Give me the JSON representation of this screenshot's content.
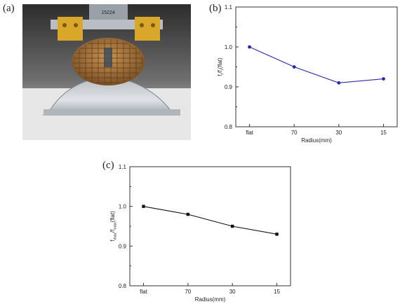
{
  "panels": {
    "a": "(a)",
    "b": "(b)",
    "c": "(c)"
  },
  "photo": {
    "caption_text": "15224",
    "colors": {
      "background": "#3a3a3a",
      "clamp": "#d9a82a",
      "wafer": "#b07a3c",
      "glass": "#c9cdd2",
      "metal": "#9aa0a8"
    }
  },
  "chart_data": [
    {
      "type": "line",
      "panel": "b",
      "categories": [
        "flat",
        "70",
        "30",
        "15"
      ],
      "series": [
        {
          "values": [
            1.0,
            0.95,
            0.91,
            0.92
          ],
          "color": "#2a2aa8",
          "marker": "circle"
        }
      ],
      "xlabel": "Radius(mm)",
      "ylabel": "f_r/f_r(flat)",
      "ylabel_parts": {
        "main1": "f",
        "sub1": "r",
        "mid": "/f",
        "sub2": "r",
        "tail": "(flat)"
      },
      "ylim": [
        0.8,
        1.1
      ],
      "yticks": [
        "0.8",
        "0.9",
        "1.0",
        "1.1"
      ],
      "grid": false
    },
    {
      "type": "line",
      "panel": "c",
      "categories": [
        "flat",
        "70",
        "30",
        "15"
      ],
      "series": [
        {
          "values": [
            1.0,
            0.98,
            0.95,
            0.93
          ],
          "color": "#111111",
          "marker": "square"
        }
      ],
      "xlabel": "Radius(mm)",
      "ylabel": "f_max/f_max(flat)",
      "ylabel_parts": {
        "main1": "f",
        "sub1": "max",
        "mid": "/f",
        "sub2": "max",
        "tail": "(flat)"
      },
      "ylim": [
        0.8,
        1.1
      ],
      "yticks": [
        "0.8",
        "0.9",
        "1.0",
        "1.1"
      ],
      "grid": false
    }
  ]
}
